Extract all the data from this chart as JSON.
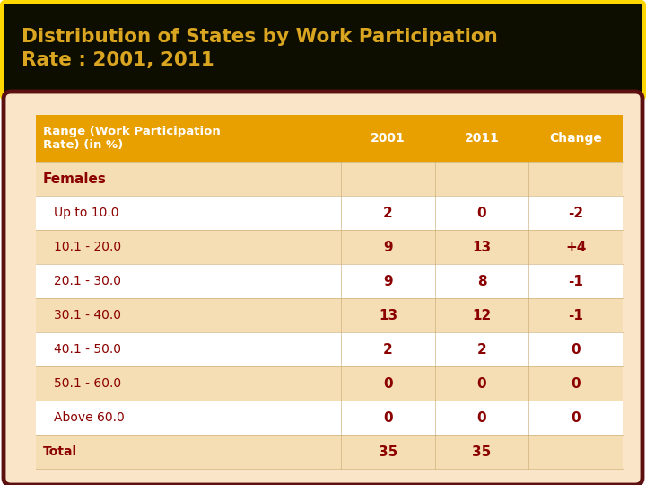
{
  "title": "Distribution of States by Work Participation\nRate : 2001, 2011",
  "title_color": "#DAA520",
  "title_bg": "#0D0D00",
  "title_border": "#FFD700",
  "table_outer_bg": "#FFFFFF",
  "table_border": "#5C1010",
  "header_bg": "#E8A000",
  "header_text_color": "#FFFFFF",
  "subheader_text": "Females",
  "subheader_text_color": "#8B0000",
  "row_even_bg": "#FFFFFF",
  "row_odd_bg": "#F5DEB3",
  "col_header": "Range (Work Participation\nRate) (in %)",
  "col_2001": "2001",
  "col_2011": "2011",
  "col_change": "Change",
  "rows": [
    {
      "range": "Up to 10.0",
      "y2001": "2",
      "y2011": "0",
      "change": "-2"
    },
    {
      "range": "10.1 - 20.0",
      "y2001": "9",
      "y2011": "13",
      "change": "+4"
    },
    {
      "range": "20.1 - 30.0",
      "y2001": "9",
      "y2011": "8",
      "change": "-1"
    },
    {
      "range": "30.1 - 40.0",
      "y2001": "13",
      "y2011": "12",
      "change": "-1"
    },
    {
      "range": "40.1 - 50.0",
      "y2001": "2",
      "y2011": "2",
      "change": "0"
    },
    {
      "range": "50.1 - 60.0",
      "y2001": "0",
      "y2011": "0",
      "change": "0"
    },
    {
      "range": "Above 60.0",
      "y2001": "0",
      "y2011": "0",
      "change": "0"
    },
    {
      "range": "Total",
      "y2001": "35",
      "y2011": "35",
      "change": ""
    }
  ],
  "cell_text_color": "#8B0000"
}
